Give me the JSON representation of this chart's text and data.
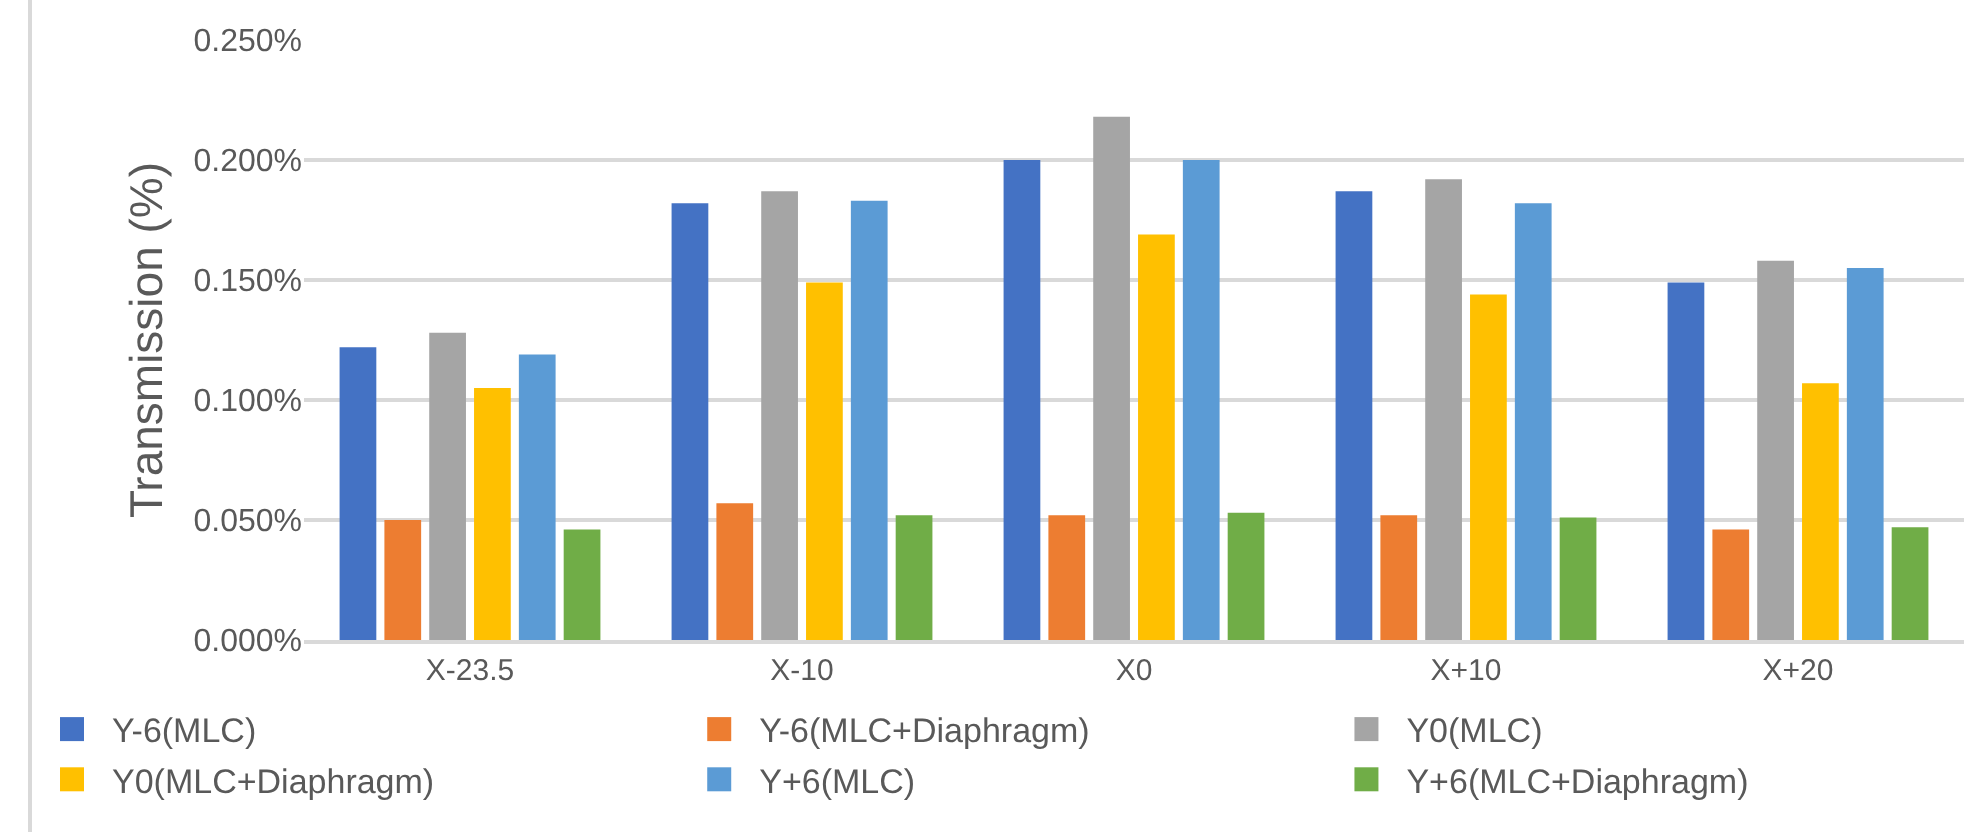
{
  "chart_data": {
    "type": "bar",
    "ylabel": "Transmission (%)",
    "categories": [
      "X-23.5",
      "X-10",
      "X0",
      "X+10",
      "X+20"
    ],
    "series": [
      {
        "name": "Y-6(MLC)",
        "color": "#4472c4",
        "values": [
          0.122,
          0.182,
          0.2,
          0.187,
          0.149
        ]
      },
      {
        "name": "Y-6(MLC+Diaphragm)",
        "color": "#ed7d31",
        "values": [
          0.05,
          0.057,
          0.052,
          0.052,
          0.046
        ]
      },
      {
        "name": "Y0(MLC)",
        "color": "#a5a5a5",
        "values": [
          0.128,
          0.187,
          0.218,
          0.192,
          0.158
        ]
      },
      {
        "name": "Y0(MLC+Diaphragm)",
        "color": "#ffc000",
        "values": [
          0.105,
          0.149,
          0.169,
          0.144,
          0.107
        ]
      },
      {
        "name": "Y+6(MLC)",
        "color": "#5b9bd5",
        "values": [
          0.119,
          0.183,
          0.2,
          0.182,
          0.155
        ]
      },
      {
        "name": "Y+6(MLC+Diaphragm)",
        "color": "#70ad47",
        "values": [
          0.046,
          0.052,
          0.053,
          0.051,
          0.047
        ]
      }
    ],
    "ylim": [
      0,
      0.25
    ],
    "yticks": [
      {
        "value": 0,
        "label": "0.000%"
      },
      {
        "value": 0.05,
        "label": "0.050%"
      },
      {
        "value": 0.1,
        "label": "0.100%"
      },
      {
        "value": 0.15,
        "label": "0.150%"
      },
      {
        "value": 0.2,
        "label": "0.200%"
      },
      {
        "value": 0.25,
        "label": "0.250%"
      }
    ],
    "grid": "y",
    "legend": "bottom"
  }
}
